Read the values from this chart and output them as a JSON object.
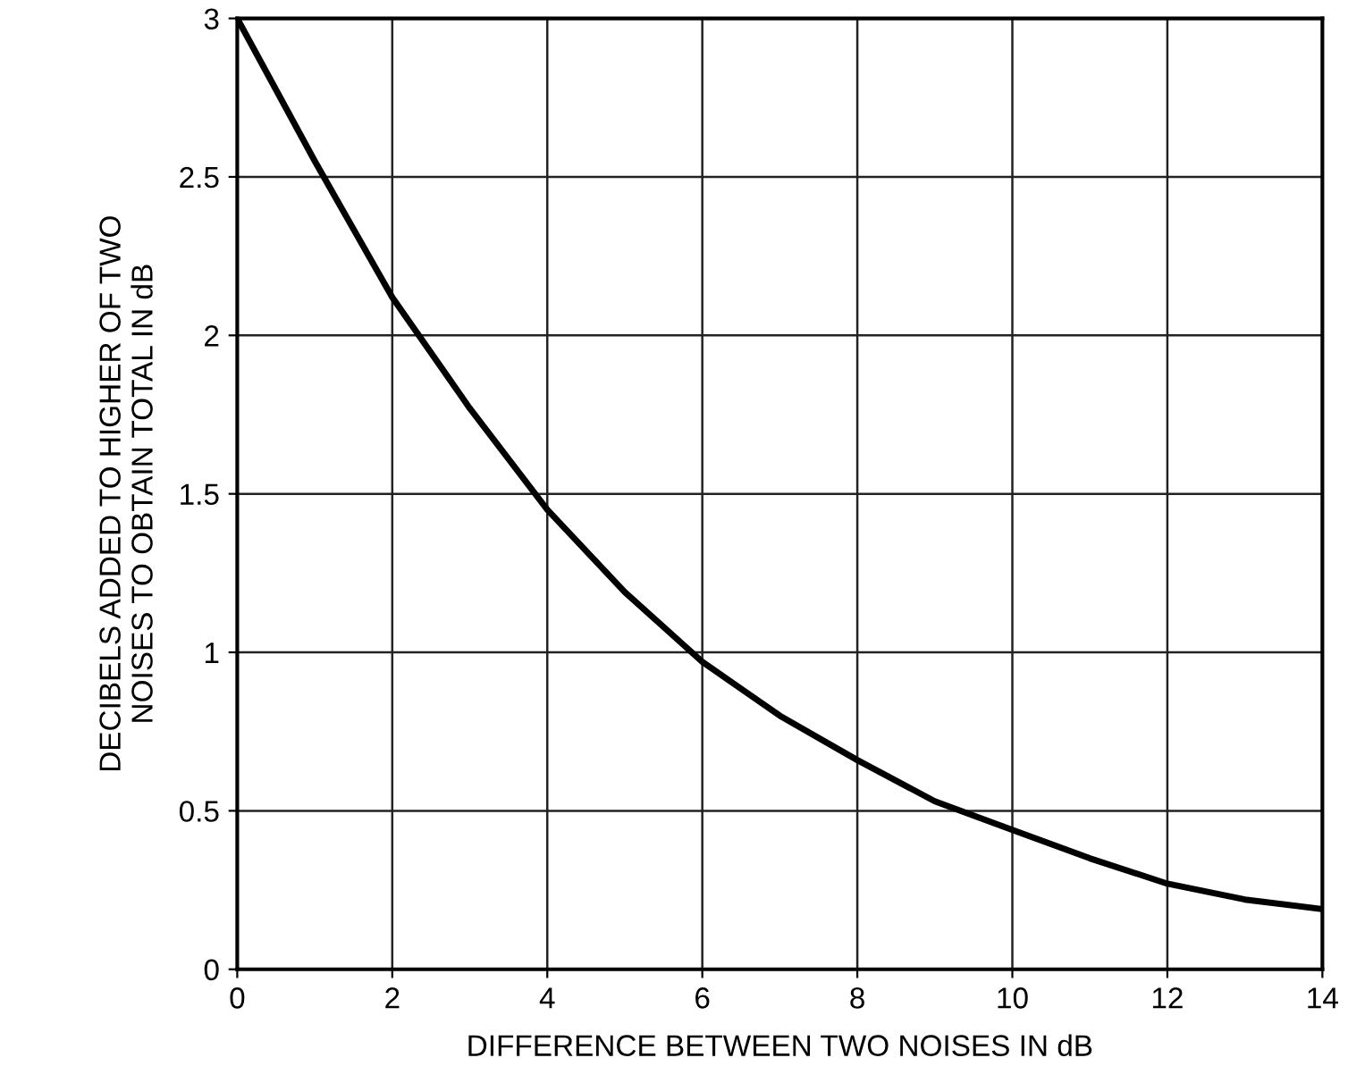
{
  "chart_data": {
    "type": "line",
    "xlabel": "DIFFERENCE BETWEEN TWO NOISES IN dB",
    "ylabel": "DECIBELS ADDED TO HIGHER OF TWO\nNOISES TO OBTAIN TOTAL IN dB",
    "x": [
      0,
      1,
      2,
      3,
      4,
      5,
      6,
      7,
      8,
      9,
      10,
      11,
      12,
      13,
      14
    ],
    "series": [
      {
        "color": "#000000",
        "values": [
          3.0,
          2.55,
          2.12,
          1.77,
          1.45,
          1.19,
          0.97,
          0.8,
          0.66,
          0.53,
          0.44,
          0.35,
          0.27,
          0.22,
          0.19
        ]
      }
    ],
    "xlim": [
      0,
      14
    ],
    "ylim": [
      0,
      3
    ],
    "xticks": [
      0,
      2,
      4,
      6,
      8,
      10,
      12,
      14
    ],
    "yticks": [
      0,
      0.5,
      1,
      1.5,
      2,
      2.5,
      3
    ],
    "grid": true,
    "legend": false,
    "marker": "none",
    "line_style": "solid"
  }
}
